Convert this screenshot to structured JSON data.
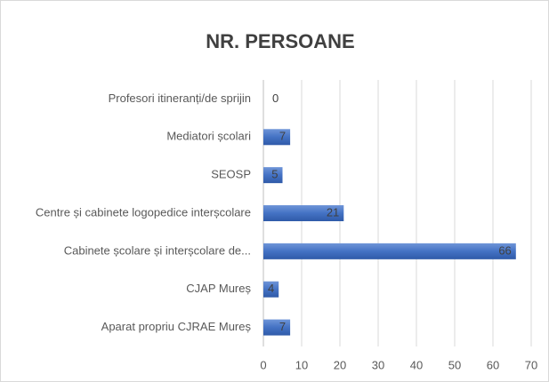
{
  "chart_data": {
    "type": "bar",
    "orientation": "horizontal",
    "title": "NR. PERSOANE",
    "categories": [
      "Profesori itineranți/de sprijin",
      "Mediatori școlari",
      "SEOSP",
      "Centre și cabinete logopedice interșcolare",
      "Cabinete școlare și interșcolare de...",
      "CJAP Mureș",
      "Aparat propriu CJRAE Mureș"
    ],
    "values": [
      0,
      7,
      5,
      21,
      66,
      4,
      7
    ],
    "color": "#4472c4",
    "xlim": [
      0,
      70
    ],
    "xticks": [
      0,
      10,
      20,
      30,
      40,
      50,
      60,
      70
    ],
    "grid": true
  }
}
